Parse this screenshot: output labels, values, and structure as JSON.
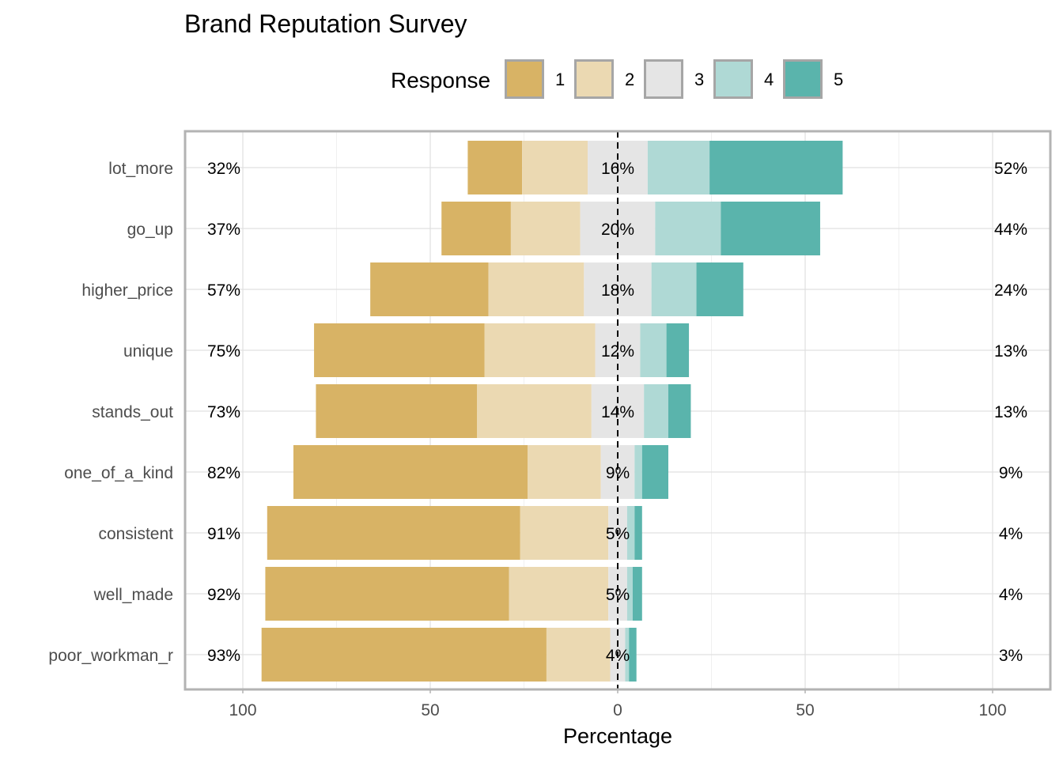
{
  "chart_data": {
    "type": "bar",
    "title": "Brand Reputation Survey",
    "xlabel": "Percentage",
    "ylabel": "",
    "xlim": [
      -100,
      100
    ],
    "x_tick_labels": [
      "100",
      "50",
      "0",
      "50",
      "100"
    ],
    "x_tick_values": [
      -100,
      -50,
      0,
      50,
      100
    ],
    "legend": {
      "title": "Response",
      "position": "top",
      "entries": [
        "1",
        "2",
        "3",
        "4",
        "5"
      ]
    },
    "colors": [
      "#d8b365",
      "#ebd9b2",
      "#e5e5e5",
      "#afd9d5",
      "#5ab4ac"
    ],
    "grid": true,
    "categories": [
      "lot_more",
      "go_up",
      "higher_price",
      "unique",
      "stands_out",
      "one_of_a_kind",
      "consistent",
      "well_made",
      "poor_workman_r"
    ],
    "series": [
      {
        "name": "1",
        "values": [
          14.5,
          18.5,
          31.5,
          45.5,
          43.0,
          62.5,
          67.5,
          65.0,
          76.0
        ]
      },
      {
        "name": "2",
        "values": [
          17.5,
          18.5,
          25.5,
          29.5,
          30.5,
          19.5,
          23.5,
          26.5,
          17.0
        ]
      },
      {
        "name": "3",
        "values": [
          16.0,
          20.0,
          18.0,
          12.0,
          14.0,
          9.0,
          5.0,
          5.0,
          4.0
        ]
      },
      {
        "name": "4",
        "values": [
          16.5,
          17.5,
          12.0,
          7.0,
          6.5,
          2.0,
          2.0,
          1.5,
          1.0
        ]
      },
      {
        "name": "5",
        "values": [
          35.5,
          26.5,
          12.5,
          6.0,
          6.0,
          7.0,
          2.0,
          2.5,
          2.0
        ]
      }
    ],
    "low_labels": [
      "32%",
      "37%",
      "57%",
      "75%",
      "73%",
      "82%",
      "91%",
      "92%",
      "93%"
    ],
    "neutral_labels": [
      "16%",
      "20%",
      "18%",
      "12%",
      "14%",
      "9%",
      "5%",
      "5%",
      "4%"
    ],
    "high_labels": [
      "52%",
      "44%",
      "24%",
      "13%",
      "13%",
      "9%",
      "4%",
      "4%",
      "3%"
    ]
  }
}
